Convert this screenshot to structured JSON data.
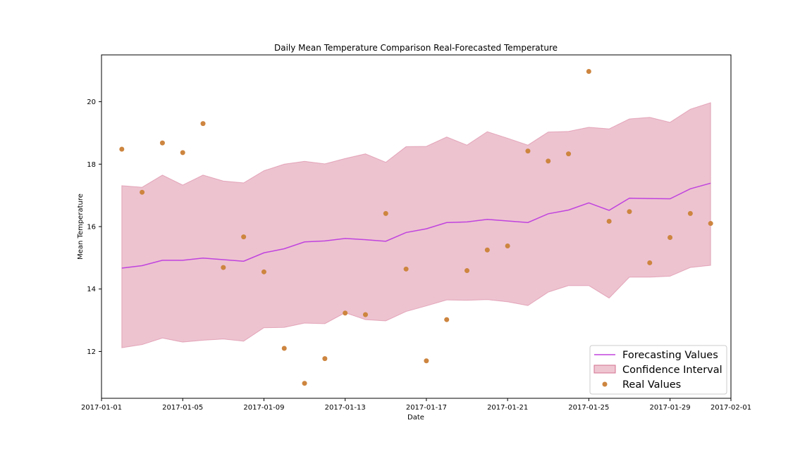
{
  "chart_data": {
    "type": "line",
    "title": "Daily Mean Temperature Comparison Real-Forecasted Temperature",
    "xlabel": "Date",
    "ylabel": "Mean Temperature",
    "x_dates": [
      "2017-01-02",
      "2017-01-03",
      "2017-01-04",
      "2017-01-05",
      "2017-01-06",
      "2017-01-07",
      "2017-01-08",
      "2017-01-09",
      "2017-01-10",
      "2017-01-11",
      "2017-01-12",
      "2017-01-13",
      "2017-01-14",
      "2017-01-15",
      "2017-01-16",
      "2017-01-17",
      "2017-01-18",
      "2017-01-19",
      "2017-01-20",
      "2017-01-21",
      "2017-01-22",
      "2017-01-23",
      "2017-01-24",
      "2017-01-25",
      "2017-01-26",
      "2017-01-27",
      "2017-01-28",
      "2017-01-29",
      "2017-01-30",
      "2017-01-31"
    ],
    "xlim": [
      "2017-01-01",
      "2017-02-01"
    ],
    "ylim": [
      10.5,
      21.5
    ],
    "x_ticks": [
      "2017-01-01",
      "2017-01-05",
      "2017-01-09",
      "2017-01-13",
      "2017-01-17",
      "2017-01-21",
      "2017-01-25",
      "2017-01-29",
      "2017-02-01"
    ],
    "y_ticks": [
      12,
      14,
      16,
      18,
      20
    ],
    "grid": false,
    "legend_position": "bottom-right",
    "series": [
      {
        "name": "Forecasting Values",
        "kind": "line",
        "color": "#c043de",
        "values": [
          14.67,
          14.75,
          14.92,
          14.92,
          14.99,
          14.94,
          14.89,
          15.16,
          15.29,
          15.51,
          15.54,
          15.62,
          15.58,
          15.53,
          15.81,
          15.93,
          16.13,
          16.15,
          16.23,
          16.18,
          16.13,
          16.41,
          16.53,
          16.76,
          16.52,
          16.91,
          16.9,
          16.89,
          17.21,
          17.39
        ]
      },
      {
        "name": "Confidence Interval",
        "kind": "band",
        "color": "#d4708f",
        "lower": [
          12.12,
          12.22,
          12.43,
          12.3,
          12.36,
          12.4,
          12.33,
          12.76,
          12.77,
          12.91,
          12.89,
          13.24,
          13.02,
          12.98,
          13.28,
          13.46,
          13.65,
          13.64,
          13.66,
          13.59,
          13.47,
          13.9,
          14.11,
          14.11,
          13.71,
          14.38,
          14.38,
          14.41,
          14.69,
          14.76
        ],
        "upper": [
          17.31,
          17.26,
          17.65,
          17.33,
          17.65,
          17.46,
          17.4,
          17.79,
          18.0,
          18.09,
          18.01,
          18.18,
          18.33,
          18.06,
          18.56,
          18.57,
          18.87,
          18.61,
          19.04,
          18.83,
          18.61,
          19.03,
          19.05,
          19.18,
          19.13,
          19.45,
          19.5,
          19.34,
          19.76,
          19.97
        ]
      },
      {
        "name": "Real Values",
        "kind": "scatter",
        "color": "#cd853f",
        "values": [
          18.48,
          17.1,
          18.68,
          18.37,
          19.3,
          14.69,
          15.67,
          14.55,
          12.1,
          10.98,
          11.77,
          13.23,
          13.18,
          16.42,
          14.64,
          11.7,
          13.02,
          14.59,
          15.25,
          15.38,
          18.42,
          18.1,
          18.33,
          20.97,
          16.17,
          16.48,
          14.84,
          15.65,
          16.42,
          16.1
        ]
      }
    ]
  }
}
